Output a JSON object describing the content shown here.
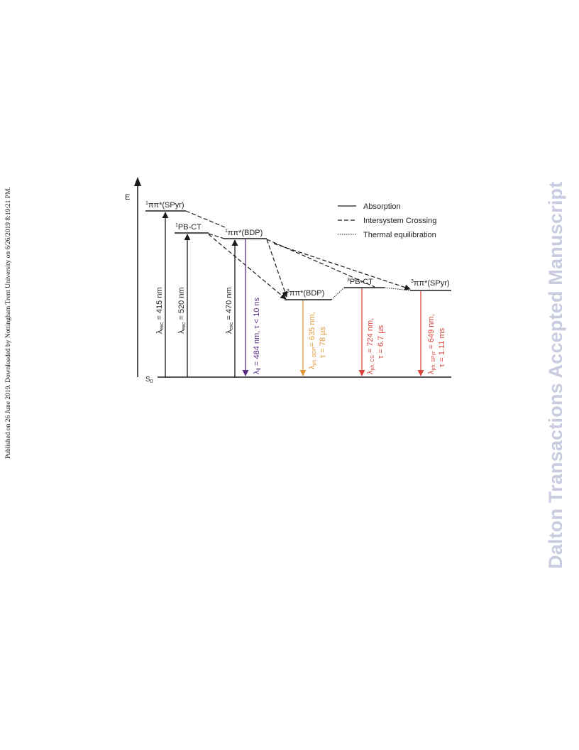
{
  "sidebar": {
    "published_note": "Published on 26 June 2019. Downloaded by Nottingham Trent University on 6/26/2019 8:19:21 PM.",
    "watermark": "Dalton Transactions Accepted Manuscript"
  },
  "axis": {
    "energy_label": "E",
    "ground_label_main": "S",
    "ground_label_sub": "0"
  },
  "legend": {
    "absorption": "Absorption",
    "isc": "Intersystem Crossing",
    "thermal": "Thermal equilibration"
  },
  "levels": {
    "spyr_singlet": {
      "sup": "1",
      "text": "ππ*(SPyr)"
    },
    "pbct_singlet": {
      "sup": "1",
      "text": "PB-CT"
    },
    "bdp_singlet": {
      "sup": "1",
      "text": "ππ*(BDP)"
    },
    "bdp_triplet": {
      "sup": "3",
      "text": "ππ*(BDP)"
    },
    "pbct_triplet": {
      "sup": "3",
      "text": "PB-CT"
    },
    "spyr_triplet": {
      "sup": "3",
      "text": "ππ*(SPyr)"
    }
  },
  "transitions": {
    "abs_415": {
      "lambda": "λ",
      "sub": "exc",
      "text": " = 415 nm"
    },
    "abs_520": {
      "lambda": "λ",
      "sub": "exc",
      "text": " = 520 nm"
    },
    "abs_470": {
      "lambda": "λ",
      "sub": "exc",
      "text": " = 470 nm"
    },
    "fl": {
      "lambda": "λ",
      "sub": "fl",
      "text": " = 484 nm, τ < 10 ns"
    },
    "ph_bdp": {
      "lambda": "λ",
      "sub": "ph, BDP",
      "text": "= 635 nm,",
      "line2": "τ = 78 µs"
    },
    "ph_cs": {
      "lambda": "λ",
      "sub": "ph, CS",
      "text": " = 724 nm,",
      "line2": "τ = 6.7 µs"
    },
    "ph_spyr": {
      "lambda": "λ",
      "sub": "ph, SPyr",
      "text": " = 649 nm,",
      "line2": "τ = 1.11 ms"
    }
  },
  "colors": {
    "black": "#1a1a1a",
    "purple": "#5b2d86",
    "orange": "#e39a3b",
    "red": "#d9453c",
    "watermark": "#c9cbe0"
  }
}
